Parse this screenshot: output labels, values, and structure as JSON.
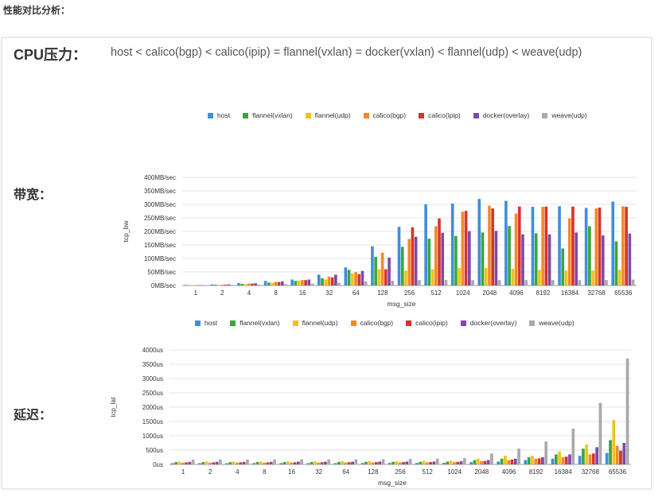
{
  "page": {
    "heading": "性能对比分析：",
    "cpu_label": "CPU压力：",
    "cpu_order": "host < calico(bgp) < calico(ipip) = flannel(vxlan) = docker(vxlan) < flannel(udp) < weave(udp)",
    "bandwidth_label": "带宽：",
    "latency_label": "延迟："
  },
  "colors": {
    "host": "#3f8edc",
    "flannel(vxlan)": "#3aa63a",
    "flannel(udp)": "#f2c21b",
    "calico(bgp)": "#ef8a2c",
    "calico(ipip)": "#d9342b",
    "docker(overlay)": "#7d4aab",
    "weave(udp)": "#aaaaaa"
  },
  "chart_data": [
    {
      "type": "bar",
      "title": "",
      "xlabel": "msg_size",
      "ylabel": "tcp_bw",
      "ylim": [
        0,
        400
      ],
      "y_ticks": [
        "0MB/sec",
        "50MB/sec",
        "100MB/sec",
        "150MB/sec",
        "200MB/sec",
        "250MB/sec",
        "300MB/sec",
        "350MB/sec",
        "400MB/sec"
      ],
      "grid": true,
      "legend": "top",
      "categories": [
        "1",
        "2",
        "4",
        "8",
        "16",
        "32",
        "64",
        "128",
        "256",
        "512",
        "1024",
        "2048",
        "4096",
        "8192",
        "16384",
        "32768",
        "65536"
      ],
      "series": [
        {
          "name": "host",
          "values": [
            2,
            4,
            9,
            17,
            22,
            40,
            67,
            145,
            217,
            300,
            303,
            320,
            313,
            291,
            293,
            287,
            310
          ]
        },
        {
          "name": "flannel(vxlan)",
          "values": [
            1,
            3,
            6,
            11,
            17,
            27,
            58,
            106,
            143,
            173,
            183,
            196,
            220,
            193,
            137,
            219,
            163
          ]
        },
        {
          "name": "flannel(udp)",
          "values": [
            1,
            2,
            5,
            10,
            18,
            22,
            45,
            60,
            55,
            60,
            65,
            65,
            62,
            58,
            55,
            55,
            58
          ]
        },
        {
          "name": "calico(bgp)",
          "values": [
            1,
            3,
            7,
            13,
            20,
            33,
            50,
            121,
            172,
            219,
            273,
            295,
            266,
            291,
            248,
            285,
            293
          ]
        },
        {
          "name": "calico(ipip)",
          "values": [
            1,
            3,
            7,
            13,
            20,
            30,
            42,
            60,
            215,
            248,
            276,
            285,
            292,
            292,
            292,
            288,
            291
          ]
        },
        {
          "name": "docker(overlay)",
          "values": [
            1,
            4,
            8,
            15,
            22,
            40,
            54,
            103,
            180,
            195,
            201,
            202,
            189,
            189,
            196,
            185,
            192
          ]
        },
        {
          "name": "weave(udp)",
          "values": [
            1,
            2,
            3,
            5,
            7,
            10,
            15,
            18,
            20,
            20,
            20,
            20,
            20,
            20,
            20,
            20,
            22
          ]
        }
      ]
    },
    {
      "type": "bar",
      "title": "",
      "xlabel": "msg_size",
      "ylabel": "tcp_lat",
      "ylim": [
        0,
        4000
      ],
      "y_ticks": [
        "0us",
        "500us",
        "1000us",
        "1500us",
        "2000us",
        "2500us",
        "3000us",
        "3500us",
        "4000us"
      ],
      "grid": true,
      "legend": "top",
      "categories": [
        "1",
        "2",
        "4",
        "8",
        "16",
        "32",
        "64",
        "128",
        "256",
        "512",
        "1024",
        "2048",
        "4096",
        "8192",
        "16384",
        "32768",
        "65536"
      ],
      "series": [
        {
          "name": "host",
          "values": [
            40,
            40,
            40,
            45,
            45,
            45,
            45,
            50,
            50,
            50,
            55,
            80,
            100,
            150,
            200,
            300,
            400
          ]
        },
        {
          "name": "flannel(vxlan)",
          "values": [
            80,
            80,
            80,
            85,
            85,
            85,
            90,
            90,
            90,
            90,
            100,
            150,
            200,
            250,
            350,
            550,
            850
          ]
        },
        {
          "name": "flannel(udp)",
          "values": [
            100,
            100,
            100,
            100,
            105,
            105,
            110,
            110,
            110,
            120,
            130,
            200,
            300,
            300,
            450,
            700,
            1550
          ]
        },
        {
          "name": "calico(bgp)",
          "values": [
            60,
            60,
            60,
            60,
            65,
            65,
            65,
            70,
            70,
            70,
            80,
            110,
            150,
            200,
            250,
            350,
            650
          ]
        },
        {
          "name": "calico(ipip)",
          "values": [
            70,
            70,
            70,
            70,
            75,
            75,
            75,
            80,
            80,
            80,
            90,
            120,
            170,
            210,
            270,
            380,
            480
          ]
        },
        {
          "name": "docker(overlay)",
          "values": [
            90,
            90,
            90,
            90,
            95,
            95,
            95,
            100,
            100,
            100,
            110,
            150,
            200,
            250,
            350,
            600,
            750
          ]
        },
        {
          "name": "weave(udp)",
          "values": [
            170,
            170,
            170,
            175,
            175,
            175,
            180,
            180,
            190,
            200,
            220,
            380,
            550,
            800,
            1250,
            2150,
            3700
          ]
        }
      ]
    }
  ]
}
